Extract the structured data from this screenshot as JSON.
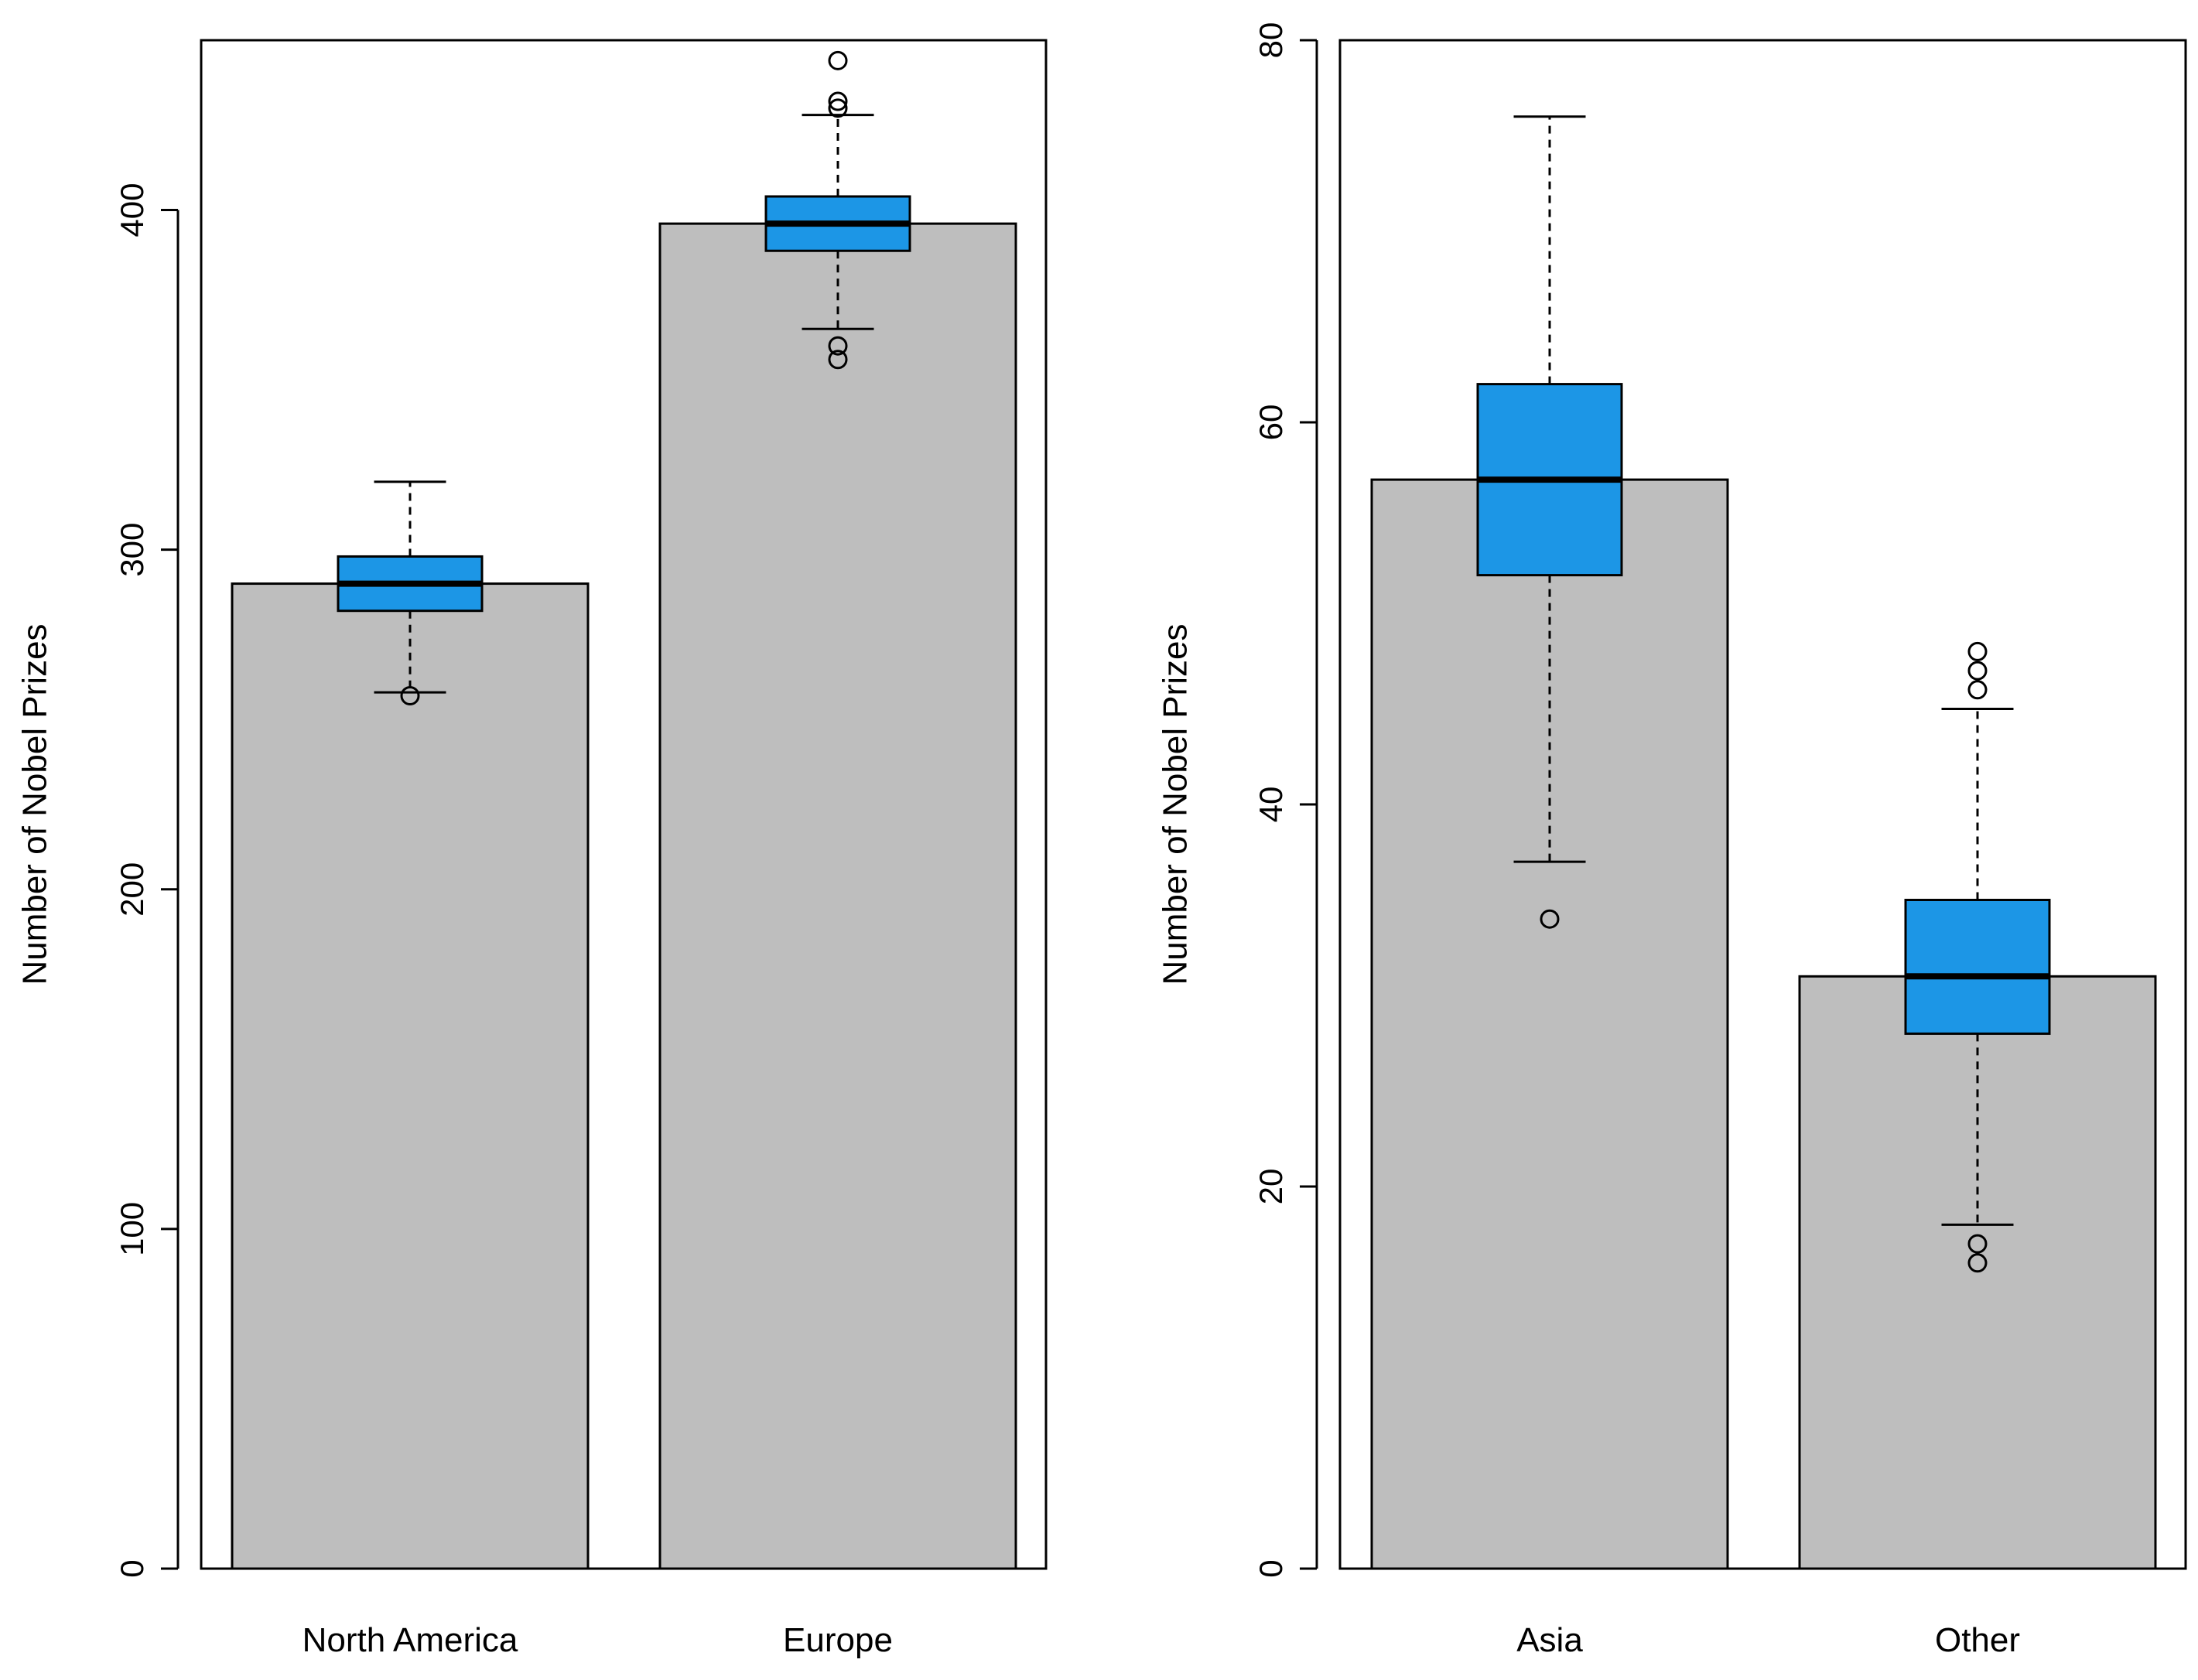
{
  "colors": {
    "bar_fill": "#bebebe",
    "box_fill": "#1c96e6",
    "stroke": "#000000",
    "background": "#ffffff"
  },
  "chart_data": [
    {
      "type": "bar",
      "overlay": "boxplot",
      "title": "",
      "xlabel": "",
      "ylabel": "Number of Nobel Prizes",
      "ylim": [
        0,
        450
      ],
      "yticks": [
        0,
        100,
        200,
        300,
        400
      ],
      "ytick_labels": [
        "0",
        "100",
        "200",
        "300",
        "400"
      ],
      "grid": false,
      "categories": [
        "North America",
        "Europe"
      ],
      "values": [
        290,
        396
      ],
      "boxes": [
        {
          "q1": 282,
          "median": 290,
          "q3": 298,
          "whisker_low": 258,
          "whisker_high": 320,
          "outliers": [
            257
          ]
        },
        {
          "q1": 388,
          "median": 396,
          "q3": 404,
          "whisker_low": 365,
          "whisker_high": 428,
          "outliers": [
            356,
            360,
            430,
            432,
            444
          ]
        }
      ]
    },
    {
      "type": "bar",
      "overlay": "boxplot",
      "title": "",
      "xlabel": "",
      "ylabel": "Number of Nobel Prizes",
      "ylim": [
        0,
        80
      ],
      "yticks": [
        0,
        20,
        40,
        60,
        80
      ],
      "ytick_labels": [
        "0",
        "20",
        "40",
        "60",
        "80"
      ],
      "grid": false,
      "categories": [
        "Asia",
        "Other"
      ],
      "values": [
        57,
        31
      ],
      "boxes": [
        {
          "q1": 52,
          "median": 57,
          "q3": 62,
          "whisker_low": 37,
          "whisker_high": 76,
          "outliers": [
            34
          ]
        },
        {
          "q1": 28,
          "median": 31,
          "q3": 35,
          "whisker_low": 18,
          "whisker_high": 45,
          "outliers": [
            16,
            17,
            46,
            47,
            48
          ]
        }
      ]
    }
  ]
}
